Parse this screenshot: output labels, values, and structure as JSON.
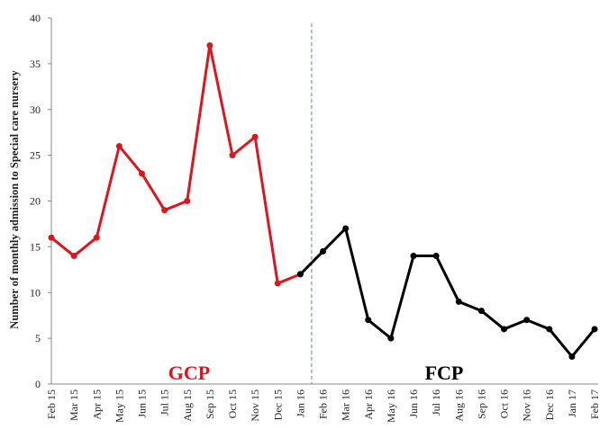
{
  "chart_data": {
    "type": "line",
    "y_label": "Number of monthly admission to Special care nursery",
    "annotations": [
      "GCP",
      "FCP"
    ],
    "categories": [
      "Feb 15",
      "Mar 15",
      "Apr 15",
      "May 15",
      "Jun 15",
      "Jul 15",
      "Aug 15",
      "Sep 15",
      "Oct 15",
      "Nov 15",
      "Dec 15",
      "Jan 16",
      "Feb 16",
      "Mar 16",
      "Apr 16",
      "May 16",
      "Jun 16",
      "Jul 16",
      "Aug 16",
      "Sep 16",
      "Oct 16",
      "Nov 16",
      "Dec 16",
      "Jan 17",
      "Feb 17"
    ],
    "series": [
      {
        "name": "GCP",
        "color": "#e0141e",
        "values": [
          16,
          14,
          16,
          26,
          23,
          19,
          20,
          37,
          25,
          27,
          11,
          12,
          null,
          null,
          null,
          null,
          null,
          null,
          null,
          null,
          null,
          null,
          null,
          null,
          null
        ]
      },
      {
        "name": "FCP",
        "color": "#000000",
        "values": [
          null,
          null,
          null,
          null,
          null,
          null,
          null,
          null,
          null,
          null,
          null,
          12,
          14.5,
          17,
          7,
          5,
          14,
          14,
          9,
          8,
          6,
          7,
          6,
          3,
          6
        ]
      }
    ],
    "ylim": [
      0,
      40
    ],
    "yticks": [
      0,
      5,
      10,
      15,
      20,
      25,
      30,
      35,
      40
    ],
    "grid": false
  }
}
